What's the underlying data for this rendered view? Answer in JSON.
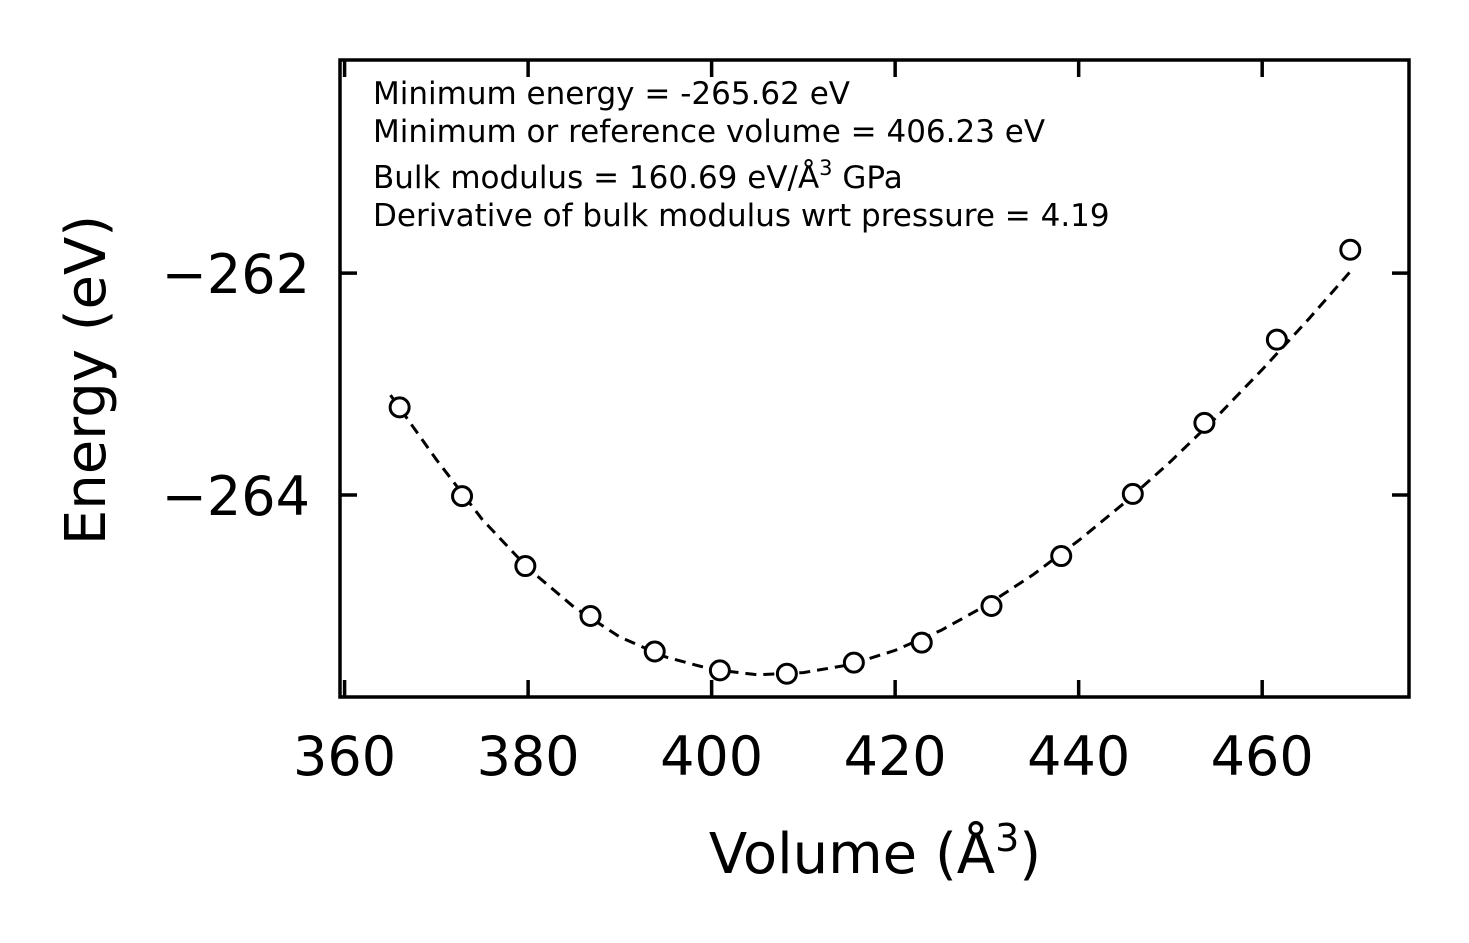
{
  "chart_data": {
    "type": "scatter",
    "title": "",
    "xlabel_base": "Volume (Å",
    "xlabel_sup": "3",
    "xlabel_close": ")",
    "ylabel": "Energy (eV)",
    "xlim": [
      359.5,
      476
    ],
    "ylim": [
      -265.82,
      -260.08
    ],
    "x_ticks": [
      360,
      380,
      400,
      420,
      440,
      460
    ],
    "x_tick_labels": [
      "360",
      "380",
      "400",
      "420",
      "440",
      "460"
    ],
    "y_ticks": [
      -262,
      -264
    ],
    "y_tick_labels": [
      "−262",
      "−264"
    ],
    "series": [
      {
        "name": "data",
        "marker": "open-circle",
        "x": [
          366.0,
          372.8,
          379.7,
          386.8,
          393.8,
          400.9,
          408.2,
          415.5,
          422.9,
          430.5,
          438.1,
          445.9,
          453.7,
          461.6,
          469.6
        ],
        "y": [
          -263.21,
          -264.01,
          -264.64,
          -265.09,
          -265.41,
          -265.58,
          -265.61,
          -265.51,
          -265.33,
          -265.0,
          -264.55,
          -263.99,
          -263.35,
          -262.6,
          -261.79
        ]
      },
      {
        "name": "fit",
        "line_style": "dashed",
        "x": [
          365,
          370,
          375,
          380,
          385,
          390,
          395,
          400,
          405,
          410,
          415,
          420,
          425,
          430,
          435,
          440,
          445,
          450,
          455,
          460,
          465,
          470
        ],
        "y": [
          -263.1,
          -263.68,
          -264.22,
          -264.66,
          -265.01,
          -265.28,
          -265.46,
          -265.57,
          -265.62,
          -265.6,
          -265.53,
          -265.4,
          -265.22,
          -264.99,
          -264.72,
          -264.41,
          -264.07,
          -263.7,
          -263.3,
          -262.87,
          -262.42,
          -261.95
        ]
      }
    ],
    "annotations": {
      "line1": "Minimum energy = -265.62 eV",
      "line2": "Minimum or reference volume = 406.23 eV",
      "line3_pre": "Bulk modulus = 160.69 eV/Å",
      "line3_sup": "3",
      "line3_post": " GPa",
      "line4": "Derivative of bulk modulus wrt pressure = 4.19"
    },
    "grid": false,
    "legend": "none",
    "colors": {
      "line": "#000000",
      "marker": "#000000",
      "background": "#ffffff"
    }
  }
}
